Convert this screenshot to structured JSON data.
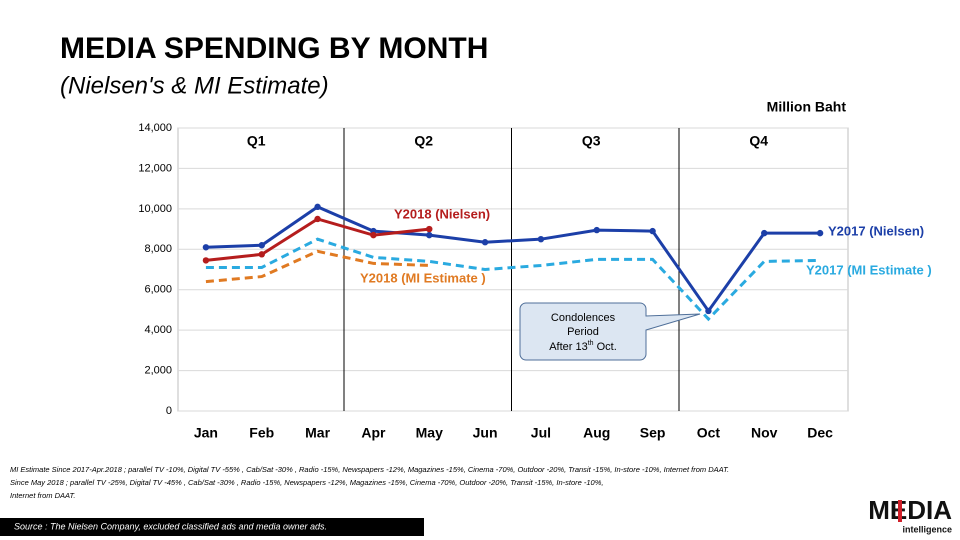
{
  "chart_data": {
    "type": "line",
    "title": "MEDIA SPENDING BY MONTH",
    "subtitle": "(Nielsen's & MI Estimate)",
    "unit_label": "Million Baht",
    "categories": [
      "Jan",
      "Feb",
      "Mar",
      "Apr",
      "May",
      "Jun",
      "Jul",
      "Aug",
      "Sep",
      "Oct",
      "Nov",
      "Dec"
    ],
    "quarters": [
      "Q1",
      "Q2",
      "Q3",
      "Q4"
    ],
    "ylim": [
      0,
      14000
    ],
    "yticks": [
      0,
      {
        "value": 2000,
        "label": "2,000"
      },
      {
        "value": 4000,
        "label": "4,000"
      },
      {
        "value": 6000,
        "label": "6,000"
      },
      {
        "value": 8000,
        "label": "8,000"
      },
      {
        "value": 10000,
        "label": "10,000"
      },
      {
        "value": 12000,
        "label": "12,000"
      },
      {
        "value": 14000,
        "label": "14,000"
      }
    ],
    "grid": true,
    "series": [
      {
        "name": "Y2017 (Nielsen)",
        "color": "#1c3fa8",
        "dashed": false,
        "markers": true,
        "values": [
          8100,
          8200,
          10100,
          8900,
          8700,
          8350,
          8500,
          8950,
          8900,
          4950,
          8800,
          8800
        ]
      },
      {
        "name": "Y2017 (MI Estimate )",
        "color": "#2aaae0",
        "dashed": true,
        "markers": false,
        "values": [
          7100,
          7100,
          8500,
          7600,
          7400,
          7000,
          7200,
          7500,
          7500,
          4550,
          7400,
          7450
        ]
      },
      {
        "name": "Y2018 (Nielsen)",
        "color": "#b51d1d",
        "dashed": false,
        "markers": true,
        "values": [
          7450,
          7750,
          9500,
          8700,
          9000,
          null,
          null,
          null,
          null,
          null,
          null,
          null
        ]
      },
      {
        "name": "Y2018 (MI Estimate )",
        "color": "#e07a22",
        "dashed": true,
        "markers": false,
        "values": [
          6400,
          6650,
          7900,
          7300,
          7200,
          null,
          null,
          null,
          null,
          null,
          null,
          null
        ]
      }
    ],
    "annotation": {
      "line1": "Condolences",
      "line2": "Period",
      "line3": [
        "After 13",
        "th",
        " Oct."
      ]
    },
    "notes": [
      "MI Estimate Since 2017-Apr.2018 ; parallel TV -10%, Digital TV -55% , Cab/Sat -30% , Radio -15%, Newspapers -12%, Magazines -15%, Cinema -70%, Outdoor -20%, Transit -15%, In-store -10%, Internet from DAAT.",
      "Since May 2018 ; parallel TV -25%, Digital TV -45% , Cab/Sat -30% , Radio -15%, Newspapers -12%, Magazines -15%, Cinema -70%, Outdoor -20%, Transit -15%, In-store -10%,",
      "Internet from DAAT."
    ],
    "source": "Source : The Nielsen Company, excluded classified ads and media owner ads.",
    "logo": {
      "word": "MEDIA",
      "tag": "intelligence"
    }
  }
}
